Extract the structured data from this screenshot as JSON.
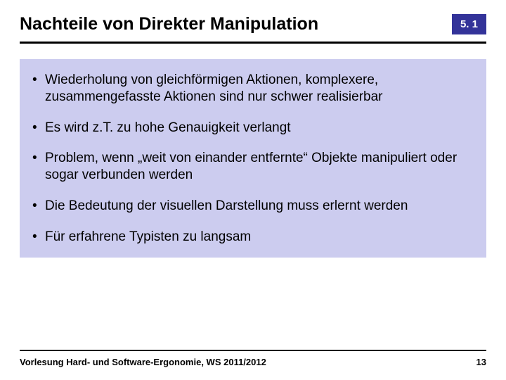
{
  "header": {
    "title": "Nachteile von Direkter Manipulation",
    "section_number": "5. 1"
  },
  "bullets": [
    "Wiederholung von gleichförmigen Aktionen, komplexere, zusammengefasste Aktionen sind nur schwer realisierbar",
    "Es wird z.T. zu hohe Genauigkeit verlangt",
    "Problem, wenn „weit von einander entfernte“ Objekte manipuliert oder sogar verbunden werden",
    "Die Bedeutung der visuellen Darstellung muss erlernt werden",
    "Für erfahrene Typisten zu langsam"
  ],
  "footer": {
    "text": "Vorlesung Hard- und Software-Ergonomie, WS 2011/2012",
    "page": "13"
  },
  "colors": {
    "badge_bg": "#333399",
    "content_bg": "#ccccef",
    "text": "#000000",
    "page_bg": "#ffffff"
  }
}
